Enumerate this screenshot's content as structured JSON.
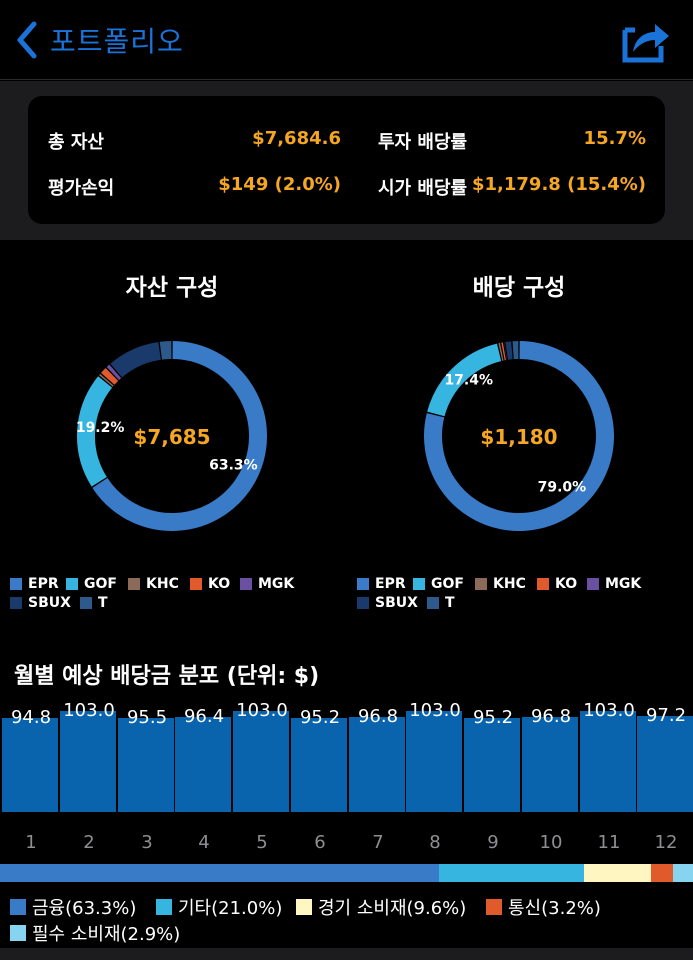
{
  "nav": {
    "title": "포트폴리오",
    "back_icon": "chevron-left-icon",
    "share_icon": "share-icon",
    "accent": "#1a73d9"
  },
  "summary": {
    "total_assets_label": "총 자산",
    "total_assets_value": "$7,684.6",
    "yield_label": "투자 배당률",
    "yield_value": "15.7%",
    "pnl_label": "평가손익",
    "pnl_value": "$149 (2.0%)",
    "market_yield_label": "시가 배당률",
    "market_yield_value": "$1,179.8 (15.4%)"
  },
  "asset_chart": {
    "title": "자산 구성",
    "center": "$7,685",
    "slices": [
      {
        "name": "EPR",
        "value": 63.3,
        "color": "#3a7bc8",
        "label": "63.3%"
      },
      {
        "name": "GOF",
        "value": 19.2,
        "color": "#35b5df",
        "label": "19.2%"
      },
      {
        "name": "KHC",
        "value": 0.5,
        "color": "#8c6a5a",
        "label": ""
      },
      {
        "name": "KO",
        "value": 1.3,
        "color": "#e05a2b",
        "label": ""
      },
      {
        "name": "MGK",
        "value": 0.8,
        "color": "#6b4fa0",
        "label": ""
      },
      {
        "name": "SBUX",
        "value": 8.8,
        "color": "#1a3a6b",
        "label": ""
      },
      {
        "name": "T",
        "value": 2.1,
        "color": "#2d5a8a",
        "label": ""
      }
    ]
  },
  "dividend_chart": {
    "title": "배당 구성",
    "center": "$1,180",
    "slices": [
      {
        "name": "EPR",
        "value": 79.0,
        "color": "#3a7bc8",
        "label": "79.0%"
      },
      {
        "name": "GOF",
        "value": 17.4,
        "color": "#35b5df",
        "label": "17.4%"
      },
      {
        "name": "KHC",
        "value": 0.5,
        "color": "#8c6a5a",
        "label": ""
      },
      {
        "name": "KO",
        "value": 0.5,
        "color": "#e05a2b",
        "label": ""
      },
      {
        "name": "MGK",
        "value": 0.2,
        "color": "#6b4fa0",
        "label": ""
      },
      {
        "name": "SBUX",
        "value": 1.2,
        "color": "#1a3a6b",
        "label": ""
      },
      {
        "name": "T",
        "value": 1.2,
        "color": "#2d5a8a",
        "label": ""
      }
    ]
  },
  "legend": [
    {
      "name": "EPR",
      "color": "#3a7bc8"
    },
    {
      "name": "GOF",
      "color": "#35b5df"
    },
    {
      "name": "KHC",
      "color": "#8c6a5a"
    },
    {
      "name": "KO",
      "color": "#e05a2b"
    },
    {
      "name": "MGK",
      "color": "#6b4fa0"
    },
    {
      "name": "SBUX",
      "color": "#1a3a6b"
    },
    {
      "name": "T",
      "color": "#2d5a8a"
    }
  ],
  "chart_data": {
    "type": "bar",
    "title": "월별 예상 배당금 분포 (단위: $)",
    "categories": [
      "1",
      "2",
      "3",
      "4",
      "5",
      "6",
      "7",
      "8",
      "9",
      "10",
      "11",
      "12"
    ],
    "values": [
      94.8,
      103.0,
      95.5,
      96.4,
      103.0,
      95.2,
      96.8,
      103.0,
      95.2,
      96.8,
      103.0,
      97.2
    ],
    "labels": [
      "94.8",
      "103.0",
      "95.5",
      "96.4",
      "103.0",
      "95.2",
      "96.8",
      "103.0",
      "95.2",
      "96.8",
      "103.0",
      "97.2"
    ],
    "color": "#0a64ad"
  },
  "sectors": [
    {
      "label": "금융(63.3%)",
      "value": 63.3,
      "color": "#3a7bc8"
    },
    {
      "label": "기타(21.0%)",
      "value": 21.0,
      "color": "#35b5df"
    },
    {
      "label": "경기 소비재(9.6%)",
      "value": 9.6,
      "color": "#fff6c2"
    },
    {
      "label": "통신(3.2%)",
      "value": 3.2,
      "color": "#e05a2b"
    },
    {
      "label": "필수 소비재(2.9%)",
      "value": 2.9,
      "color": "#86d4f0"
    }
  ]
}
